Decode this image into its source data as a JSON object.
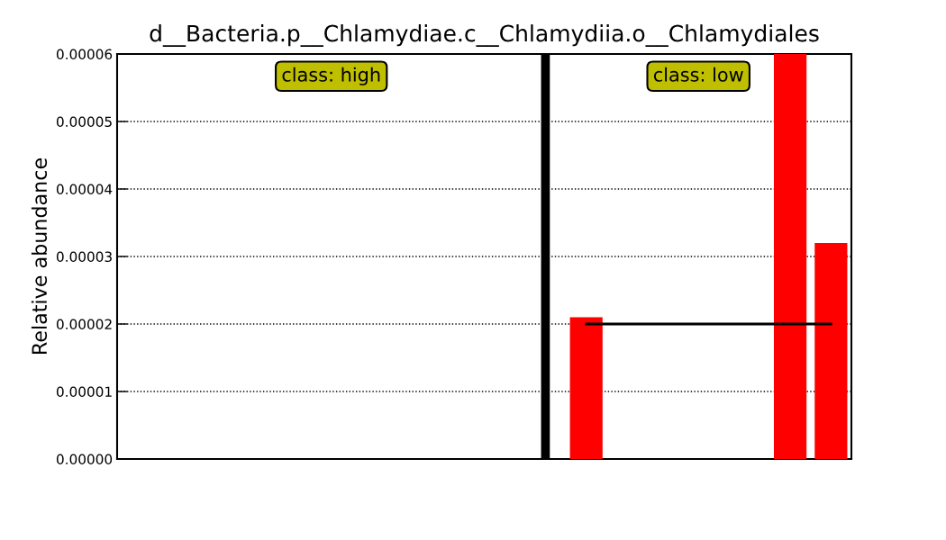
{
  "chart_data": {
    "type": "bar",
    "title": "d__Bacteria.p__Chlamydiae.c__Chlamydiia.o__Chlamydiales",
    "ylabel": "Relative abundance",
    "categories": [
      null,
      null,
      null,
      null,
      null,
      null,
      null,
      null,
      null,
      null,
      null,
      null,
      null,
      null,
      null,
      null,
      null,
      null
    ],
    "series": [
      {
        "type": "bar",
        "color": "#ff0000",
        "values": [
          0,
          0,
          0,
          0,
          0,
          0,
          0,
          0,
          0,
          0,
          null,
          2.1e-05,
          0,
          0,
          0,
          0,
          6e-05,
          3.2e-05
        ]
      },
      {
        "type": "line",
        "color": "#000000",
        "values": [
          null,
          null,
          null,
          null,
          null,
          null,
          null,
          null,
          null,
          null,
          null,
          2e-05,
          2e-05,
          2e-05,
          2e-05,
          2e-05,
          2e-05,
          2e-05
        ]
      }
    ],
    "annotations": [
      "class: high",
      "class: low"
    ],
    "ylim": [
      0,
      6e-05
    ],
    "yticks": [
      {
        "value": 0,
        "label": "0.00000"
      },
      {
        "value": 1e-05,
        "label": "0.00001"
      },
      {
        "value": 2e-05,
        "label": "0.00002"
      },
      {
        "value": 3e-05,
        "label": "0.00003"
      },
      {
        "value": 4e-05,
        "label": "0.00004"
      },
      {
        "value": 5e-05,
        "label": "0.00005"
      },
      {
        "value": 6e-05,
        "label": "0.00006"
      }
    ],
    "grid": "y"
  }
}
